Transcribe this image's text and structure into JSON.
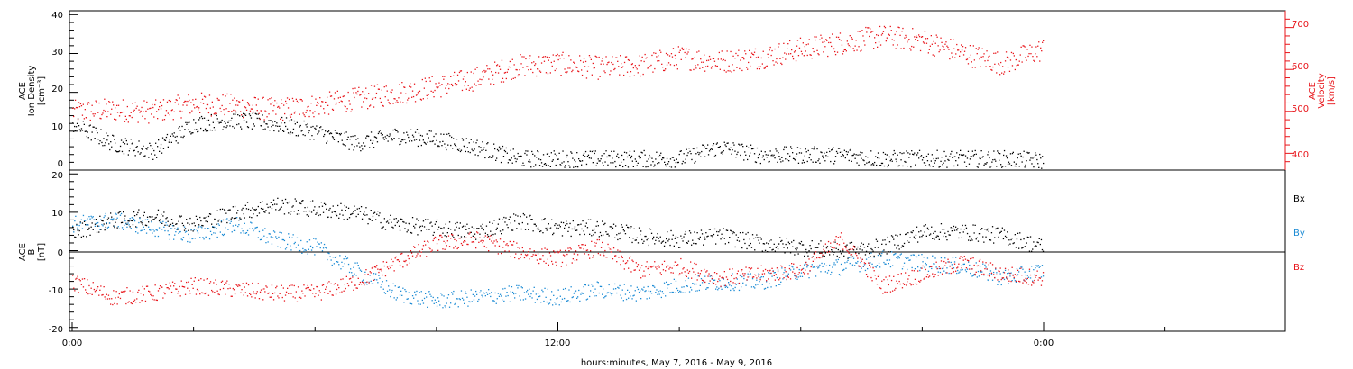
{
  "chart_data": [
    {
      "type": "scatter",
      "panel": "top",
      "ylabel_left": [
        "ACE",
        "Ion Density",
        "[cm⁻³]"
      ],
      "ylabel_right": [
        "ACE",
        "Velocity",
        "[km/s]"
      ],
      "ylim_left": [
        0,
        41
      ],
      "ylim_right": [
        360,
        740
      ],
      "left_ticks": [
        "0",
        "10",
        "20",
        "30",
        "40"
      ],
      "right_ticks": [
        "400",
        "500",
        "600",
        "700"
      ],
      "series": [
        {
          "axis": "left",
          "color": "#000000",
          "x": [
            0,
            1,
            2,
            3,
            4,
            5,
            6,
            7,
            8,
            9,
            10,
            11,
            12,
            13,
            14,
            15,
            16,
            17,
            18,
            19,
            20,
            21,
            22,
            23,
            24
          ],
          "values": [
            12,
            7,
            5,
            12,
            13,
            12,
            10,
            7,
            9,
            8,
            6,
            3,
            3,
            3,
            3,
            3,
            6,
            4,
            4,
            4,
            3,
            3,
            3,
            3,
            2.5
          ]
        },
        {
          "axis": "right",
          "color": "#e8141a",
          "x": [
            0,
            1,
            2,
            3,
            4,
            5,
            6,
            7,
            8,
            9,
            10,
            11,
            12,
            13,
            14,
            15,
            16,
            17,
            18,
            19,
            20,
            21,
            22,
            23,
            24
          ],
          "values": [
            500,
            505,
            500,
            520,
            515,
            505,
            515,
            530,
            545,
            560,
            580,
            610,
            615,
            605,
            610,
            630,
            620,
            630,
            650,
            665,
            680,
            670,
            640,
            615,
            650
          ]
        }
      ]
    },
    {
      "type": "scatter",
      "panel": "bottom",
      "ylabel_left": [
        "ACE",
        "B",
        "[nT]"
      ],
      "ylim": [
        -21,
        21
      ],
      "left_ticks": [
        "-20",
        "-10",
        "0",
        "10",
        "20"
      ],
      "legend": [
        "Bx",
        "By",
        "Bz"
      ],
      "series": [
        {
          "name": "Bx",
          "color": "#000000",
          "x": [
            0,
            1,
            2,
            3,
            4,
            5,
            6,
            7,
            8,
            9,
            10,
            11,
            12,
            13,
            14,
            15,
            16,
            17,
            18,
            19,
            20,
            21,
            22,
            23,
            24
          ],
          "values": [
            5,
            8,
            9,
            7,
            10,
            12,
            11,
            10,
            7,
            6,
            5,
            8,
            6,
            6,
            4,
            3,
            4,
            2,
            1,
            0,
            1,
            5,
            5,
            4,
            1
          ]
        },
        {
          "name": "By",
          "color": "#1a8ad4",
          "x": [
            0,
            1,
            2,
            3,
            4,
            5,
            6,
            7,
            8,
            9,
            10,
            11,
            12,
            13,
            14,
            15,
            16,
            17,
            18,
            19,
            20,
            21,
            22,
            23,
            24
          ],
          "values": [
            7,
            8,
            6,
            4,
            7,
            3,
            1,
            -5,
            -11,
            -13,
            -12,
            -11,
            -12,
            -10,
            -11,
            -9,
            -8,
            -8,
            -5,
            -4,
            -2,
            -3,
            -4,
            -7,
            -5
          ]
        },
        {
          "name": "Bz",
          "color": "#e8141a",
          "x": [
            0,
            1,
            2,
            3,
            4,
            5,
            6,
            7,
            8,
            9,
            10,
            11,
            12,
            13,
            14,
            15,
            16,
            17,
            18,
            19,
            20,
            21,
            22,
            23,
            24
          ],
          "values": [
            -8,
            -12,
            -11,
            -9,
            -10,
            -11,
            -11,
            -8,
            -3,
            2,
            3,
            0,
            -2,
            1,
            -5,
            -4,
            -7,
            -6,
            -5,
            3,
            -9,
            -6,
            -3,
            -6,
            -7
          ]
        }
      ]
    }
  ],
  "xaxis": {
    "ticks": [
      "0:00",
      "12:00",
      "0:00"
    ],
    "label": "hours:minutes, May  7, 2016 - May  9, 2016"
  }
}
